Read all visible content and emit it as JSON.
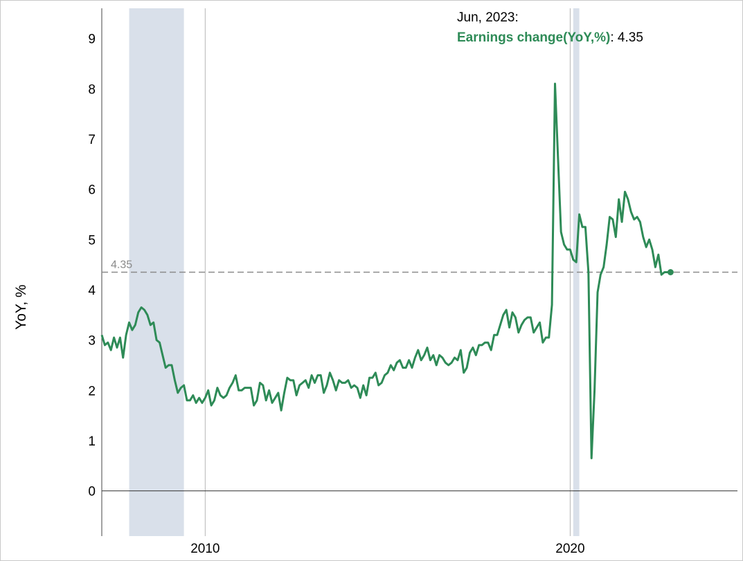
{
  "chart_data": {
    "type": "line",
    "title": "",
    "xlabel": "",
    "ylabel": "YoY, %",
    "xlim": [
      "2007-03",
      "2024-08"
    ],
    "ylim": [
      -0.9,
      9.6
    ],
    "y_ticks": [
      0,
      1,
      2,
      3,
      4,
      5,
      6,
      7,
      8,
      9
    ],
    "x_ticks": [
      "2010",
      "2020"
    ],
    "grid": "vertical lines at x ticks",
    "legend": "none",
    "recession_bands": [
      {
        "start": "2007-12",
        "end": "2009-06"
      },
      {
        "start": "2020-02",
        "end": "2020-04"
      }
    ],
    "reference_line": {
      "y": 4.35,
      "label": "4.35",
      "style": "dashed"
    },
    "tooltip": {
      "date": "Jun, 2023:",
      "series": "Earnings change(YoY,%)",
      "value": ": 4.35"
    },
    "series": [
      {
        "name": "Earnings change(YoY,%)",
        "color": "#2e8b57",
        "start": "2007-03",
        "frequency": "monthly",
        "values": [
          3.1,
          2.9,
          2.95,
          2.8,
          3.05,
          2.85,
          3.05,
          2.65,
          3.1,
          3.35,
          3.2,
          3.3,
          3.55,
          3.65,
          3.6,
          3.5,
          3.3,
          3.35,
          3.0,
          2.95,
          2.7,
          2.45,
          2.5,
          2.5,
          2.2,
          1.95,
          2.05,
          2.1,
          1.8,
          1.8,
          1.9,
          1.75,
          1.85,
          1.75,
          1.85,
          2.0,
          1.7,
          1.8,
          2.05,
          1.9,
          1.85,
          1.9,
          2.05,
          2.15,
          2.3,
          2.0,
          2.0,
          2.05,
          2.05,
          2.05,
          1.7,
          1.8,
          2.15,
          2.1,
          1.8,
          2.0,
          1.75,
          1.85,
          1.95,
          1.6,
          1.95,
          2.25,
          2.2,
          2.2,
          1.9,
          2.1,
          2.15,
          2.2,
          2.05,
          2.3,
          2.15,
          2.3,
          2.3,
          1.95,
          2.1,
          2.35,
          2.2,
          2.0,
          2.2,
          2.15,
          2.15,
          2.2,
          2.05,
          2.1,
          2.05,
          1.85,
          2.1,
          1.9,
          2.25,
          2.25,
          2.35,
          2.1,
          2.15,
          2.3,
          2.35,
          2.5,
          2.4,
          2.55,
          2.6,
          2.45,
          2.45,
          2.6,
          2.45,
          2.65,
          2.8,
          2.6,
          2.7,
          2.85,
          2.6,
          2.7,
          2.5,
          2.7,
          2.65,
          2.55,
          2.5,
          2.55,
          2.65,
          2.6,
          2.8,
          2.35,
          2.45,
          2.75,
          2.85,
          2.7,
          2.9,
          2.9,
          2.95,
          2.95,
          2.8,
          3.1,
          3.1,
          3.3,
          3.5,
          3.6,
          3.25,
          3.55,
          3.45,
          3.15,
          3.3,
          3.4,
          3.45,
          3.45,
          3.15,
          3.25,
          3.35,
          2.95,
          3.05,
          3.05,
          3.7,
          8.1,
          6.6,
          5.15,
          4.9,
          4.8,
          4.8,
          4.6,
          4.55,
          5.5,
          5.25,
          5.25,
          4.35,
          0.65,
          2.0,
          3.95,
          4.3,
          4.45,
          4.9,
          5.45,
          5.4,
          5.05,
          5.8,
          5.35,
          5.95,
          5.8,
          5.55,
          5.4,
          5.45,
          5.35,
          5.05,
          4.85,
          5.0,
          4.8,
          4.45,
          4.7,
          4.3,
          4.35,
          4.35,
          4.35
        ]
      }
    ]
  }
}
